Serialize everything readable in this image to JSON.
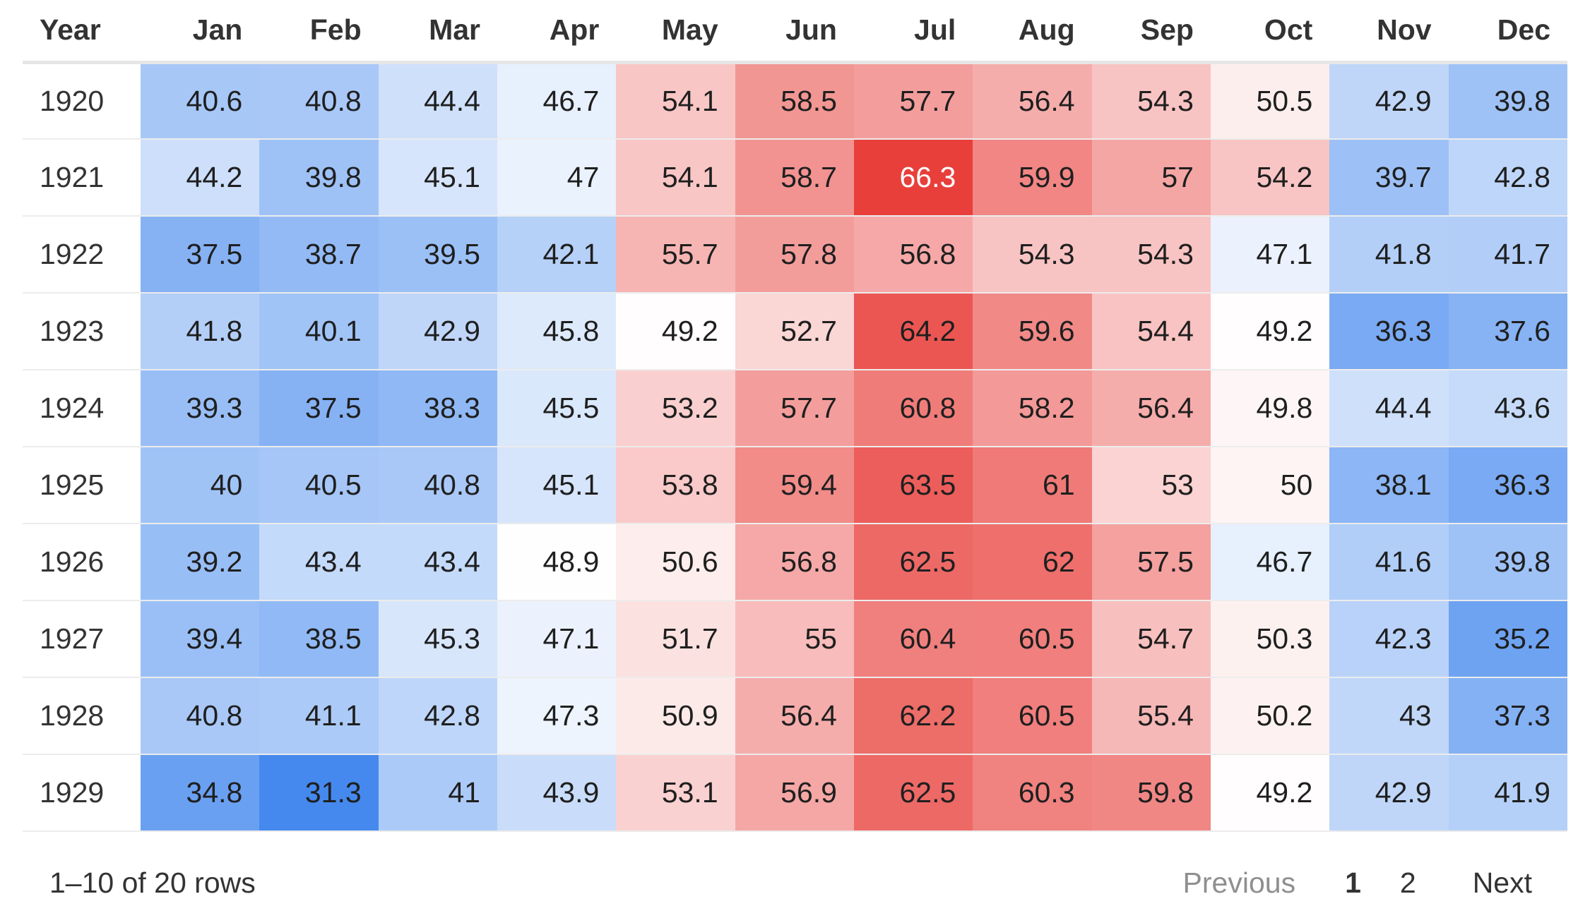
{
  "table": {
    "year_header": "Year",
    "months": [
      "Jan",
      "Feb",
      "Mar",
      "Apr",
      "May",
      "Jun",
      "Jul",
      "Aug",
      "Sep",
      "Oct",
      "Nov",
      "Dec"
    ],
    "color_low": "#4589ee",
    "color_mid": "#ffffff",
    "color_high": "#e83f3b",
    "rows": [
      {
        "year": "1920",
        "values": [
          "40.6",
          "40.8",
          "44.4",
          "46.7",
          "54.1",
          "58.5",
          "57.7",
          "56.4",
          "54.3",
          "50.5",
          "42.9",
          "39.8"
        ]
      },
      {
        "year": "1921",
        "values": [
          "44.2",
          "39.8",
          "45.1",
          "47",
          "54.1",
          "58.7",
          "66.3",
          "59.9",
          "57",
          "54.2",
          "39.7",
          "42.8"
        ]
      },
      {
        "year": "1922",
        "values": [
          "37.5",
          "38.7",
          "39.5",
          "42.1",
          "55.7",
          "57.8",
          "56.8",
          "54.3",
          "54.3",
          "47.1",
          "41.8",
          "41.7"
        ]
      },
      {
        "year": "1923",
        "values": [
          "41.8",
          "40.1",
          "42.9",
          "45.8",
          "49.2",
          "52.7",
          "64.2",
          "59.6",
          "54.4",
          "49.2",
          "36.3",
          "37.6"
        ]
      },
      {
        "year": "1924",
        "values": [
          "39.3",
          "37.5",
          "38.3",
          "45.5",
          "53.2",
          "57.7",
          "60.8",
          "58.2",
          "56.4",
          "49.8",
          "44.4",
          "43.6"
        ]
      },
      {
        "year": "1925",
        "values": [
          "40",
          "40.5",
          "40.8",
          "45.1",
          "53.8",
          "59.4",
          "63.5",
          "61",
          "53",
          "50",
          "38.1",
          "36.3"
        ]
      },
      {
        "year": "1926",
        "values": [
          "39.2",
          "43.4",
          "43.4",
          "48.9",
          "50.6",
          "56.8",
          "62.5",
          "62",
          "57.5",
          "46.7",
          "41.6",
          "39.8"
        ]
      },
      {
        "year": "1927",
        "values": [
          "39.4",
          "38.5",
          "45.3",
          "47.1",
          "51.7",
          "55",
          "60.4",
          "60.5",
          "54.7",
          "50.3",
          "42.3",
          "35.2"
        ]
      },
      {
        "year": "1928",
        "values": [
          "40.8",
          "41.1",
          "42.8",
          "47.3",
          "50.9",
          "56.4",
          "62.2",
          "60.5",
          "55.4",
          "50.2",
          "43",
          "37.3"
        ]
      },
      {
        "year": "1929",
        "values": [
          "34.8",
          "31.3",
          "41",
          "43.9",
          "53.1",
          "56.9",
          "62.5",
          "60.3",
          "59.8",
          "49.2",
          "42.9",
          "41.9"
        ]
      }
    ]
  },
  "pagination": {
    "row_info": "1–10 of 20 rows",
    "previous_label": "Previous",
    "pages": [
      "1",
      "2"
    ],
    "current_page": "1",
    "next_label": "Next"
  }
}
